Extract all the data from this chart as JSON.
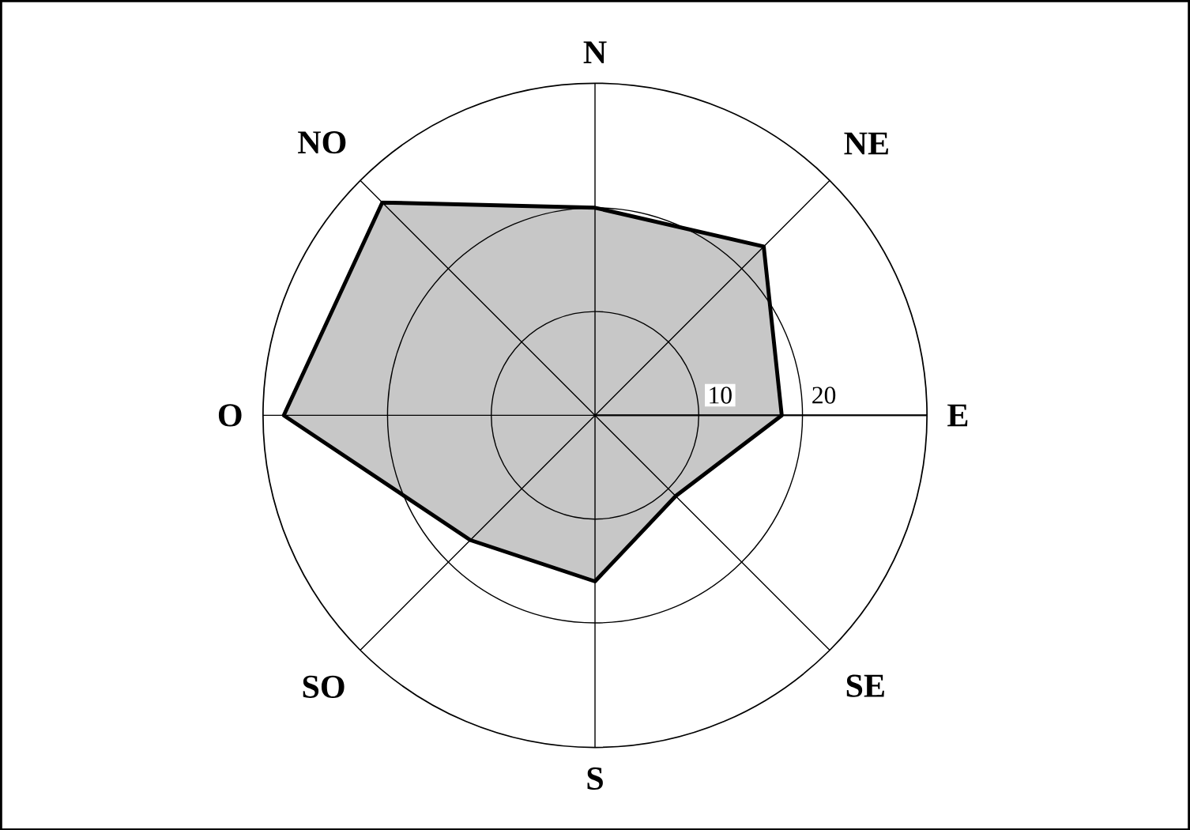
{
  "chart_data": {
    "type": "radar",
    "categories": [
      "N",
      "NE",
      "E",
      "SE",
      "S",
      "SO",
      "O",
      "NO"
    ],
    "series": [
      {
        "color": "#000000",
        "values": [
          20,
          23,
          18,
          11,
          16,
          17,
          30,
          29
        ]
      }
    ],
    "ylim": [
      0,
      32
    ],
    "yticks": [
      10,
      20
    ],
    "grid": true
  }
}
